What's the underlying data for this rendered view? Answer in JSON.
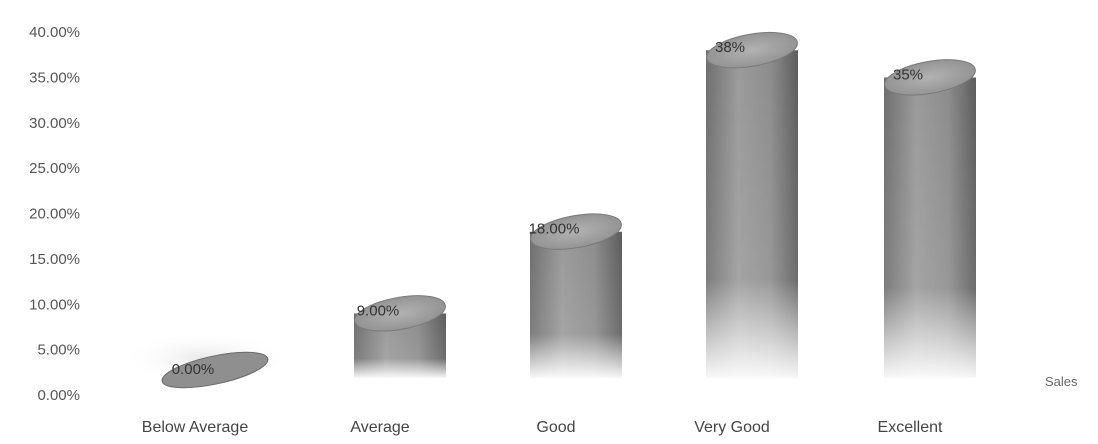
{
  "chart_data": {
    "type": "bar",
    "style": "3d-cylinder",
    "categories": [
      "Below Average",
      "Average",
      "Good",
      "Very Good",
      "Excellent"
    ],
    "series": [
      {
        "name": "Sales",
        "values": [
          0,
          9,
          18,
          38,
          35
        ],
        "labels": [
          "0.00%",
          "9.00%",
          "18.00%",
          "38%",
          "35%"
        ]
      }
    ],
    "ylim": [
      0,
      40
    ],
    "yticks": [
      "0.00%",
      "5.00%",
      "10.00%",
      "15.00%",
      "20.00%",
      "25.00%",
      "30.00%",
      "35.00%",
      "40.00%"
    ],
    "ytick_values": [
      0,
      5,
      10,
      15,
      20,
      25,
      30,
      35,
      40
    ],
    "grid": false,
    "legend": "right",
    "colors": {
      "bar": "#8a8a8a",
      "bar_dark": "#5a5a5a",
      "bar_top": "#a0a0a0"
    }
  }
}
